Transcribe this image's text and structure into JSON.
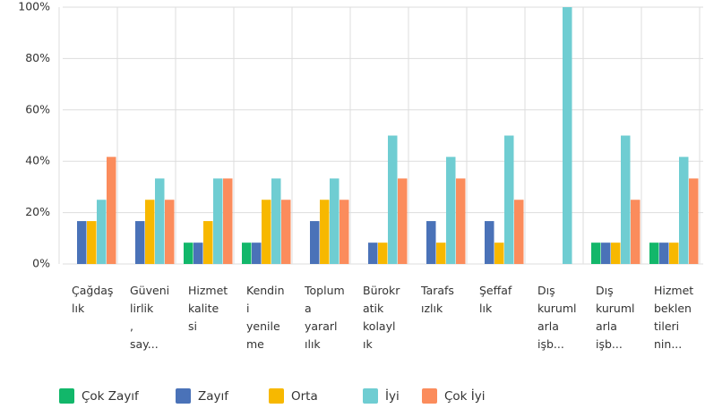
{
  "chart_data": {
    "type": "bar",
    "categories": [
      [
        "Çağdaş",
        "lık"
      ],
      [
        "Güveni",
        "lirlik",
        ",",
        "say..."
      ],
      [
        "Hizmet",
        "kalite",
        "si"
      ],
      [
        "Kendin",
        "i",
        "yenile",
        "me"
      ],
      [
        "Toplum",
        "a",
        "yararl",
        "ılık"
      ],
      [
        "Bürokr",
        "atik",
        "kolayl",
        "ık"
      ],
      [
        "Tarafs",
        "ızlık"
      ],
      [
        "Şeffaf",
        "lık"
      ],
      [
        "Dış",
        "kuruml",
        "arla",
        "işb..."
      ],
      [
        "Dış",
        "kuruml",
        "arla",
        "işb..."
      ],
      [
        "Hizmet",
        "beklen",
        "tileri",
        "nin..."
      ]
    ],
    "series": [
      {
        "name": "Çok Zayıf",
        "color": "#12b76a",
        "values": [
          0,
          0,
          8.3,
          8.3,
          0,
          0,
          0,
          0,
          0,
          8.3,
          8.3
        ]
      },
      {
        "name": "Zayıf",
        "color": "#4a72b8",
        "values": [
          16.7,
          16.7,
          8.3,
          8.3,
          16.7,
          8.3,
          16.7,
          16.7,
          0,
          8.3,
          8.3
        ]
      },
      {
        "name": "Orta",
        "color": "#f7b800",
        "values": [
          16.7,
          25,
          16.7,
          25,
          25,
          8.3,
          8.3,
          8.3,
          0,
          8.3,
          8.3
        ]
      },
      {
        "name": "İyi",
        "color": "#6fcdd2",
        "values": [
          25,
          33.3,
          33.3,
          33.3,
          33.3,
          50,
          41.7,
          50,
          100,
          50,
          41.7
        ]
      },
      {
        "name": "Çok İyi",
        "color": "#fb8c5c",
        "values": [
          41.7,
          25,
          33.3,
          25,
          25,
          33.3,
          33.3,
          25,
          0,
          25,
          33.3
        ]
      }
    ],
    "ylim": [
      0,
      100
    ],
    "yticks": [
      {
        "value": 0,
        "label": "0%"
      },
      {
        "value": 20,
        "label": "20%"
      },
      {
        "value": 40,
        "label": "40%"
      },
      {
        "value": 60,
        "label": "60%"
      },
      {
        "value": 80,
        "label": "80%"
      },
      {
        "value": 100,
        "label": "100%"
      }
    ],
    "grid": true
  }
}
